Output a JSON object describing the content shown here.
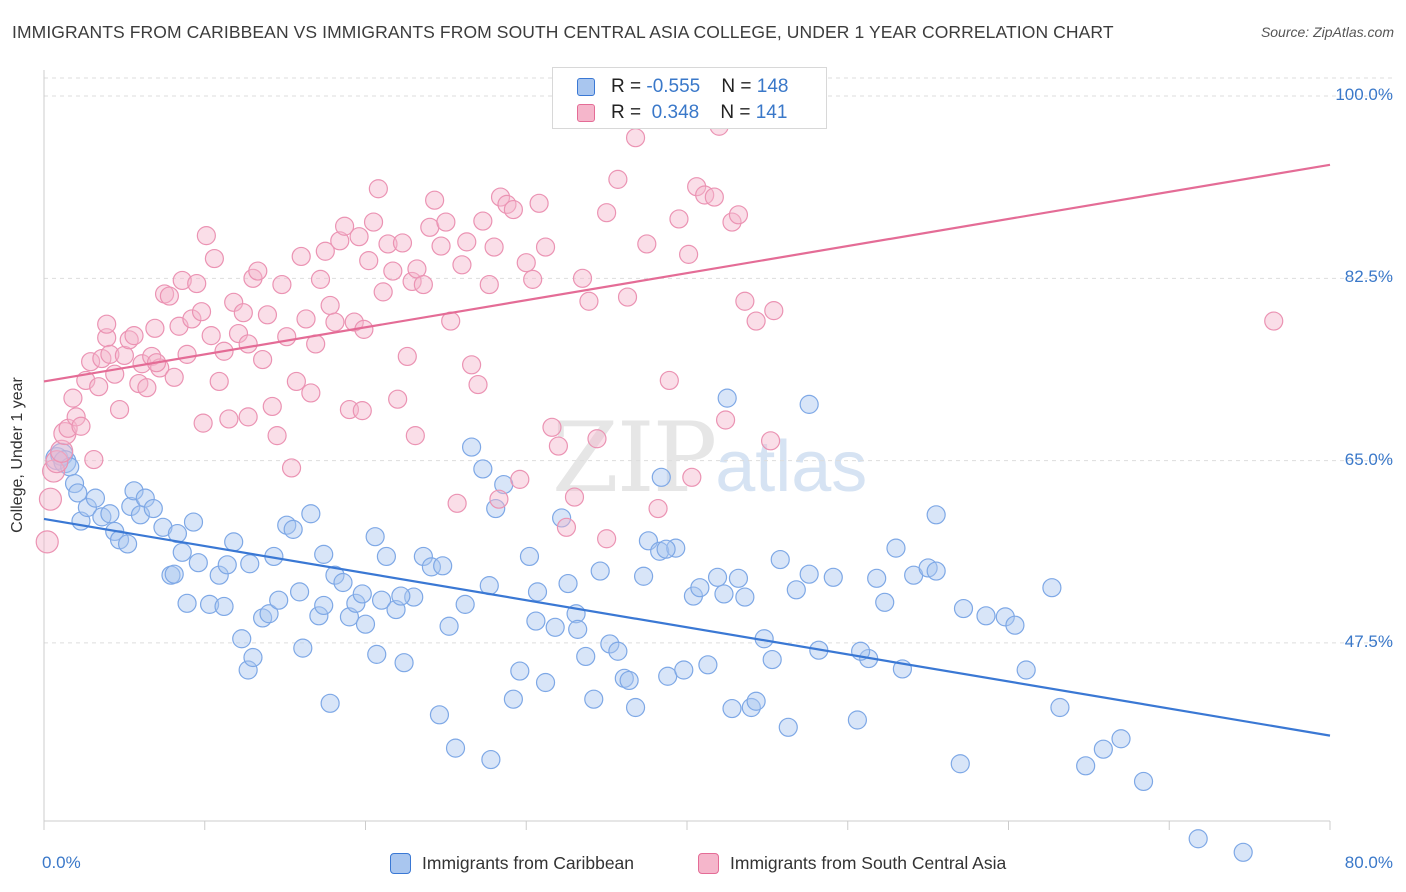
{
  "title": "IMMIGRANTS FROM CARIBBEAN VS IMMIGRANTS FROM SOUTH CENTRAL ASIA COLLEGE, UNDER 1 YEAR CORRELATION CHART",
  "source": "Source: ZipAtlas.com",
  "watermark": {
    "zip": "ZIP",
    "atlas": "atlas"
  },
  "colors": {
    "blue": "#3a78d4",
    "blue_fill": "#a9c6ef",
    "pink": "#e46c96",
    "pink_fill": "#f5b6cb",
    "accent_text": "#3a78c9"
  },
  "legend_top": [
    {
      "r_label": "R = ",
      "r_value": "-0.555",
      "n_label": "N = ",
      "n_value": "148"
    },
    {
      "r_label": "R = ",
      "r_value": " 0.348",
      "n_label": "N = ",
      "n_value": "141"
    }
  ],
  "legend_bottom": [
    "Immigrants from Caribbean",
    "Immigrants from South Central Asia"
  ],
  "chart_data": {
    "type": "scatter",
    "title": "IMMIGRANTS FROM CARIBBEAN VS IMMIGRANTS FROM SOUTH CENTRAL ASIA COLLEGE, UNDER 1 YEAR CORRELATION CHART",
    "xlabel": "",
    "ylabel": "College, Under 1 year",
    "x_tick_labels": [
      "0.0%",
      "80.0%"
    ],
    "y_tick_labels": [
      "100.0%",
      "82.5%",
      "65.0%",
      "47.5%"
    ],
    "y_ticks": [
      100.0,
      82.5,
      65.0,
      47.5
    ],
    "xlim": [
      0,
      80
    ],
    "ylim": [
      30.5,
      102.5
    ],
    "grid": true,
    "legend_position": "bottom",
    "series": [
      {
        "name": "Immigrants from Caribbean",
        "color": "#3a78d4",
        "R": -0.555,
        "N": 148,
        "trend": {
          "x": [
            0,
            80
          ],
          "y": [
            59.4,
            38.6
          ]
        },
        "points": [
          [
            0.8,
            65.2
          ],
          [
            1.1,
            65.6
          ],
          [
            1.3,
            64.9
          ],
          [
            1.6,
            64.4
          ],
          [
            1.9,
            62.8
          ],
          [
            2.1,
            61.9
          ],
          [
            2.3,
            59.2
          ],
          [
            2.7,
            60.5
          ],
          [
            3.2,
            61.4
          ],
          [
            3.6,
            59.6
          ],
          [
            4.1,
            59.9
          ],
          [
            4.4,
            58.2
          ],
          [
            4.7,
            57.4
          ],
          [
            5.4,
            60.6
          ],
          [
            5.6,
            62.1
          ],
          [
            6.0,
            59.8
          ],
          [
            6.3,
            61.4
          ],
          [
            6.8,
            60.4
          ],
          [
            7.4,
            58.6
          ],
          [
            7.9,
            54.0
          ],
          [
            8.3,
            58.0
          ],
          [
            8.6,
            56.2
          ],
          [
            8.9,
            51.3
          ],
          [
            9.3,
            59.1
          ],
          [
            9.6,
            55.2
          ],
          [
            10.3,
            51.2
          ],
          [
            10.9,
            54.0
          ],
          [
            11.2,
            51.0
          ],
          [
            11.4,
            55.0
          ],
          [
            11.8,
            57.2
          ],
          [
            12.3,
            47.9
          ],
          [
            12.7,
            44.9
          ],
          [
            13.0,
            46.1
          ],
          [
            13.6,
            49.9
          ],
          [
            14.0,
            50.3
          ],
          [
            14.3,
            55.8
          ],
          [
            14.6,
            51.6
          ],
          [
            15.1,
            58.8
          ],
          [
            15.5,
            58.4
          ],
          [
            15.9,
            52.4
          ],
          [
            16.1,
            47.0
          ],
          [
            16.6,
            59.9
          ],
          [
            17.1,
            50.1
          ],
          [
            17.4,
            51.1
          ],
          [
            17.8,
            41.7
          ],
          [
            18.1,
            54.0
          ],
          [
            18.6,
            53.3
          ],
          [
            19.0,
            50.0
          ],
          [
            19.4,
            51.3
          ],
          [
            19.8,
            52.2
          ],
          [
            20.0,
            49.3
          ],
          [
            20.6,
            57.7
          ],
          [
            21.0,
            51.6
          ],
          [
            21.3,
            55.8
          ],
          [
            21.9,
            50.7
          ],
          [
            22.4,
            45.6
          ],
          [
            23.0,
            51.9
          ],
          [
            23.6,
            55.8
          ],
          [
            24.1,
            54.8
          ],
          [
            24.6,
            40.6
          ],
          [
            25.2,
            49.1
          ],
          [
            25.6,
            37.4
          ],
          [
            26.2,
            51.2
          ],
          [
            26.6,
            66.3
          ],
          [
            27.3,
            64.2
          ],
          [
            27.8,
            36.3
          ],
          [
            28.1,
            60.4
          ],
          [
            28.6,
            62.7
          ],
          [
            29.2,
            42.1
          ],
          [
            29.6,
            44.8
          ],
          [
            30.2,
            55.8
          ],
          [
            30.6,
            49.6
          ],
          [
            31.2,
            43.7
          ],
          [
            31.8,
            49.0
          ],
          [
            32.2,
            59.5
          ],
          [
            32.6,
            53.2
          ],
          [
            33.1,
            50.3
          ],
          [
            33.7,
            46.2
          ],
          [
            34.2,
            42.1
          ],
          [
            34.6,
            54.4
          ],
          [
            35.2,
            47.4
          ],
          [
            35.7,
            46.7
          ],
          [
            36.1,
            44.1
          ],
          [
            36.8,
            41.3
          ],
          [
            37.3,
            53.9
          ],
          [
            37.6,
            57.3
          ],
          [
            38.3,
            56.3
          ],
          [
            38.8,
            44.3
          ],
          [
            39.3,
            56.6
          ],
          [
            39.8,
            44.9
          ],
          [
            40.4,
            52.0
          ],
          [
            40.8,
            52.8
          ],
          [
            41.3,
            45.4
          ],
          [
            41.9,
            53.8
          ],
          [
            42.3,
            52.2
          ],
          [
            42.8,
            41.2
          ],
          [
            43.2,
            53.7
          ],
          [
            44.0,
            41.3
          ],
          [
            44.8,
            47.9
          ],
          [
            45.3,
            45.9
          ],
          [
            45.8,
            55.5
          ],
          [
            46.3,
            39.4
          ],
          [
            46.8,
            52.6
          ],
          [
            47.6,
            54.1
          ],
          [
            48.2,
            46.8
          ],
          [
            49.1,
            53.8
          ],
          [
            50.6,
            40.1
          ],
          [
            51.3,
            46.0
          ],
          [
            51.8,
            53.7
          ],
          [
            52.3,
            51.4
          ],
          [
            53.0,
            56.6
          ],
          [
            53.4,
            45.0
          ],
          [
            54.1,
            54.0
          ],
          [
            55.0,
            54.7
          ],
          [
            55.5,
            54.4
          ],
          [
            57.2,
            50.8
          ],
          [
            58.6,
            50.1
          ],
          [
            59.8,
            50.0
          ],
          [
            60.4,
            49.2
          ],
          [
            61.1,
            44.9
          ],
          [
            62.7,
            52.8
          ],
          [
            63.2,
            41.3
          ],
          [
            64.8,
            35.7
          ],
          [
            65.9,
            37.3
          ],
          [
            67.0,
            38.3
          ],
          [
            68.4,
            34.2
          ],
          [
            71.8,
            28.7
          ],
          [
            74.6,
            27.4
          ],
          [
            42.5,
            71.0
          ],
          [
            38.4,
            63.4
          ],
          [
            55.5,
            59.8
          ],
          [
            47.6,
            70.4
          ],
          [
            36.4,
            43.9
          ],
          [
            44.3,
            41.9
          ],
          [
            33.2,
            48.8
          ],
          [
            24.8,
            54.9
          ],
          [
            17.4,
            56.0
          ],
          [
            12.8,
            55.1
          ],
          [
            8.1,
            54.1
          ],
          [
            5.2,
            57.0
          ],
          [
            22.2,
            52.0
          ],
          [
            27.7,
            53.0
          ],
          [
            30.7,
            52.4
          ],
          [
            43.6,
            51.9
          ],
          [
            57.0,
            35.9
          ],
          [
            50.8,
            46.7
          ],
          [
            38.7,
            56.5
          ],
          [
            20.7,
            46.4
          ]
        ]
      },
      {
        "name": "Immigrants from South Central Asia",
        "color": "#e46c96",
        "R": 0.348,
        "N": 141,
        "trend": {
          "x": [
            0,
            80
          ],
          "y": [
            72.6,
            93.4
          ]
        },
        "points": [
          [
            0.2,
            57.2
          ],
          [
            0.4,
            61.3
          ],
          [
            0.6,
            64.0
          ],
          [
            0.8,
            64.9
          ],
          [
            1.1,
            65.9
          ],
          [
            1.3,
            67.6
          ],
          [
            1.5,
            68.1
          ],
          [
            1.8,
            71.0
          ],
          [
            2.0,
            69.2
          ],
          [
            2.3,
            68.3
          ],
          [
            2.6,
            72.7
          ],
          [
            2.9,
            74.5
          ],
          [
            3.1,
            65.1
          ],
          [
            3.4,
            72.1
          ],
          [
            3.6,
            74.8
          ],
          [
            3.9,
            76.8
          ],
          [
            4.1,
            75.2
          ],
          [
            4.4,
            73.3
          ],
          [
            4.7,
            69.9
          ],
          [
            5.0,
            75.1
          ],
          [
            5.3,
            76.6
          ],
          [
            5.6,
            77.0
          ],
          [
            5.9,
            72.4
          ],
          [
            6.1,
            74.3
          ],
          [
            6.4,
            72.0
          ],
          [
            6.7,
            75.0
          ],
          [
            6.9,
            77.7
          ],
          [
            7.2,
            73.9
          ],
          [
            7.5,
            81.0
          ],
          [
            7.8,
            80.8
          ],
          [
            8.1,
            73.0
          ],
          [
            8.4,
            77.9
          ],
          [
            8.6,
            82.3
          ],
          [
            8.9,
            75.2
          ],
          [
            9.2,
            78.6
          ],
          [
            9.5,
            82.0
          ],
          [
            9.8,
            79.3
          ],
          [
            10.1,
            86.6
          ],
          [
            10.4,
            77.0
          ],
          [
            10.6,
            84.4
          ],
          [
            10.9,
            72.6
          ],
          [
            11.2,
            75.5
          ],
          [
            11.5,
            69.0
          ],
          [
            11.8,
            80.2
          ],
          [
            12.1,
            77.2
          ],
          [
            12.4,
            79.2
          ],
          [
            12.7,
            69.2
          ],
          [
            13.0,
            82.5
          ],
          [
            13.3,
            83.2
          ],
          [
            13.6,
            74.7
          ],
          [
            13.9,
            79.0
          ],
          [
            14.2,
            70.2
          ],
          [
            14.5,
            67.4
          ],
          [
            14.8,
            81.9
          ],
          [
            15.1,
            76.9
          ],
          [
            15.4,
            64.3
          ],
          [
            15.7,
            72.6
          ],
          [
            16.0,
            84.6
          ],
          [
            16.3,
            78.6
          ],
          [
            16.6,
            71.5
          ],
          [
            16.9,
            76.2
          ],
          [
            17.2,
            82.4
          ],
          [
            17.5,
            85.1
          ],
          [
            17.8,
            79.9
          ],
          [
            18.1,
            78.3
          ],
          [
            18.4,
            86.1
          ],
          [
            18.7,
            87.5
          ],
          [
            19.0,
            69.9
          ],
          [
            19.3,
            78.3
          ],
          [
            19.6,
            86.5
          ],
          [
            19.9,
            77.6
          ],
          [
            20.2,
            84.2
          ],
          [
            20.5,
            87.9
          ],
          [
            20.8,
            91.1
          ],
          [
            21.1,
            81.2
          ],
          [
            21.4,
            85.8
          ],
          [
            21.7,
            83.2
          ],
          [
            22.0,
            70.9
          ],
          [
            22.3,
            85.9
          ],
          [
            22.6,
            75.0
          ],
          [
            22.9,
            82.2
          ],
          [
            23.2,
            83.4
          ],
          [
            23.6,
            81.9
          ],
          [
            24.0,
            87.4
          ],
          [
            24.3,
            90.0
          ],
          [
            24.7,
            85.6
          ],
          [
            25.0,
            87.9
          ],
          [
            25.3,
            78.4
          ],
          [
            25.7,
            60.9
          ],
          [
            26.0,
            83.8
          ],
          [
            26.3,
            86.0
          ],
          [
            26.6,
            74.2
          ],
          [
            27.0,
            72.3
          ],
          [
            27.3,
            88.0
          ],
          [
            27.7,
            81.9
          ],
          [
            28.0,
            85.5
          ],
          [
            28.4,
            90.3
          ],
          [
            28.8,
            89.6
          ],
          [
            29.2,
            89.1
          ],
          [
            29.6,
            63.2
          ],
          [
            30.0,
            84.0
          ],
          [
            30.4,
            82.4
          ],
          [
            30.8,
            89.7
          ],
          [
            31.2,
            85.5
          ],
          [
            31.6,
            68.2
          ],
          [
            32.0,
            66.4
          ],
          [
            32.5,
            58.6
          ],
          [
            33.0,
            61.5
          ],
          [
            33.5,
            82.5
          ],
          [
            33.9,
            80.3
          ],
          [
            34.4,
            67.1
          ],
          [
            35.0,
            88.8
          ],
          [
            35.7,
            92.0
          ],
          [
            36.3,
            80.7
          ],
          [
            36.8,
            96.0
          ],
          [
            37.5,
            85.8
          ],
          [
            38.2,
            60.4
          ],
          [
            38.9,
            72.7
          ],
          [
            39.5,
            88.2
          ],
          [
            40.1,
            84.8
          ],
          [
            40.6,
            91.3
          ],
          [
            41.1,
            90.5
          ],
          [
            41.7,
            90.3
          ],
          [
            42.0,
            97.1
          ],
          [
            42.4,
            68.9
          ],
          [
            42.8,
            87.9
          ],
          [
            43.2,
            88.6
          ],
          [
            43.6,
            80.3
          ],
          [
            44.3,
            78.4
          ],
          [
            45.4,
            79.4
          ],
          [
            76.5,
            78.4
          ],
          [
            45.2,
            66.9
          ],
          [
            40.3,
            63.4
          ],
          [
            35.0,
            57.5
          ],
          [
            28.3,
            61.3
          ],
          [
            23.1,
            67.4
          ],
          [
            19.8,
            69.8
          ],
          [
            12.7,
            76.2
          ],
          [
            9.9,
            68.6
          ],
          [
            7.0,
            74.4
          ],
          [
            3.9,
            78.1
          ]
        ]
      }
    ]
  }
}
